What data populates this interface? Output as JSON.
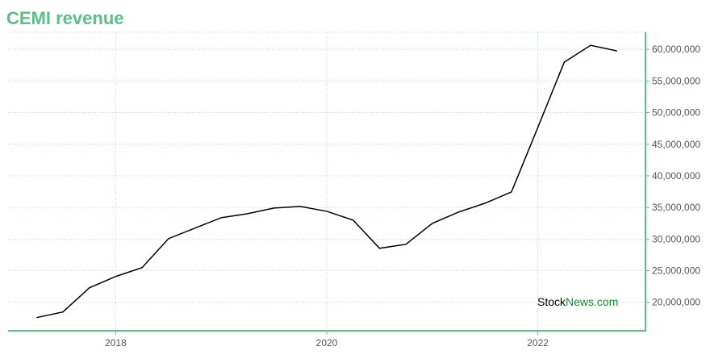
{
  "chart_data": {
    "type": "line",
    "title": "CEMI revenue",
    "x": [
      2017.25,
      2017.5,
      2017.75,
      2018.0,
      2018.25,
      2018.5,
      2018.75,
      2019.0,
      2019.25,
      2019.5,
      2019.75,
      2020.0,
      2020.25,
      2020.5,
      2020.75,
      2021.0,
      2021.25,
      2021.5,
      2021.75,
      2022.0,
      2022.25,
      2022.5,
      2022.75
    ],
    "series": [
      {
        "color": "#000000",
        "values": [
          17580000,
          18470000,
          22290000,
          24080000,
          25480000,
          30060000,
          31720000,
          33380000,
          34010000,
          34900000,
          35160000,
          34390000,
          32990000,
          28540000,
          29170000,
          32480000,
          34270000,
          35670000,
          37450000,
          47640000,
          57960000,
          60640000,
          59750000
        ]
      }
    ],
    "xlim": [
      2016.98,
      2023.02
    ],
    "xticks": [
      2018,
      2020,
      2022
    ],
    "ylim": [
      15500000,
      62700000
    ],
    "yticks": [
      {
        "value": 20000000,
        "label": "20,000,000"
      },
      {
        "value": 25000000,
        "label": "25,000,000"
      },
      {
        "value": 30000000,
        "label": "30,000,000"
      },
      {
        "value": 35000000,
        "label": "35,000,000"
      },
      {
        "value": 40000000,
        "label": "40,000,000"
      },
      {
        "value": 45000000,
        "label": "45,000,000"
      },
      {
        "value": 50000000,
        "label": "50,000,000"
      },
      {
        "value": 55000000,
        "label": "55,000,000"
      },
      {
        "value": 60000000,
        "label": "60,000,000"
      }
    ],
    "grid": true,
    "axis_color": "#5cbf85",
    "watermark": {
      "part1": "Stock",
      "part2": "News.com"
    }
  }
}
